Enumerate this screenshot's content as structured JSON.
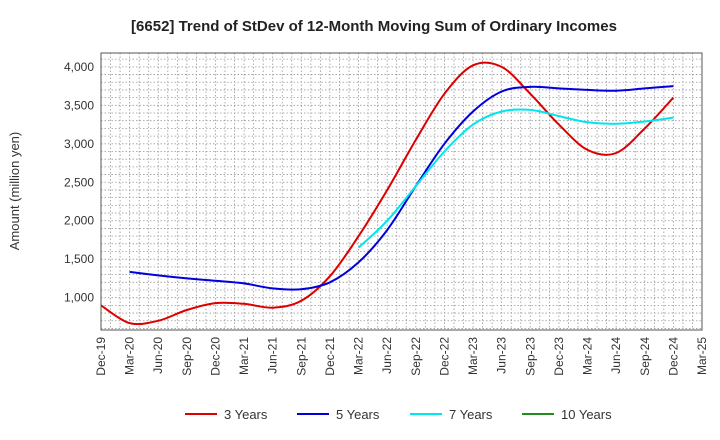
{
  "chart_data": {
    "type": "line",
    "title": "[6652]  Trend of StDev of 12-Month Moving Sum of Ordinary Incomes",
    "xlabel": "",
    "ylabel": "Amount (million yen)",
    "ylim": [
      580,
      4180
    ],
    "yticks": [
      1000,
      1500,
      2000,
      2500,
      3000,
      3500,
      4000
    ],
    "ytick_labels": [
      "1,000",
      "1,500",
      "2,000",
      "2,500",
      "3,000",
      "3,500",
      "4,000"
    ],
    "x_labels": [
      "Dec-19",
      "Mar-20",
      "Jun-20",
      "Sep-20",
      "Dec-20",
      "Mar-21",
      "Jun-21",
      "Sep-21",
      "Dec-21",
      "Mar-22",
      "Jun-22",
      "Sep-22",
      "Dec-22",
      "Mar-23",
      "Jun-23",
      "Sep-23",
      "Dec-23",
      "Mar-24",
      "Jun-24",
      "Sep-24",
      "Dec-24",
      "Mar-25"
    ],
    "grid": true,
    "series": [
      {
        "name": "3 Years",
        "color": "#dd0000",
        "start_index": 0,
        "values": [
          900,
          670,
          700,
          840,
          930,
          920,
          870,
          960,
          1280,
          1800,
          2400,
          3050,
          3650,
          4020,
          4000,
          3650,
          3250,
          2920,
          2880,
          3200,
          3600
        ]
      },
      {
        "name": "5 Years",
        "color": "#0000dd",
        "start_index": 1,
        "values": [
          1335,
          1290,
          1250,
          1220,
          1185,
          1120,
          1110,
          1200,
          1460,
          1880,
          2450,
          3000,
          3420,
          3680,
          3740,
          3720,
          3700,
          3690,
          3720,
          3750
        ]
      },
      {
        "name": "7 Years",
        "color": "#00e5ee",
        "start_index": 9,
        "values": [
          1650,
          2000,
          2450,
          2900,
          3250,
          3420,
          3440,
          3360,
          3280,
          3260,
          3290,
          3340
        ]
      },
      {
        "name": "10 Years",
        "color": "#228b22",
        "start_index": 0,
        "values": []
      }
    ]
  }
}
